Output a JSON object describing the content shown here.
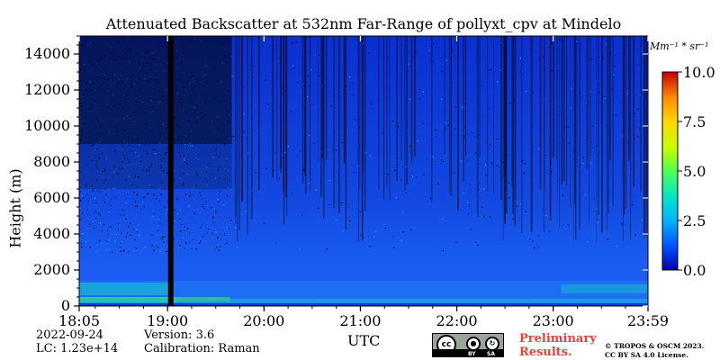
{
  "chart_data": {
    "type": "heatmap",
    "title": "Attenuated Backscatter at 532nm Far-Range of pollyxt_cpv at Mindelo",
    "ylabel": "Height (m)",
    "xlabel": "UTC",
    "x_ticks": [
      "18:05",
      "19:00",
      "20:00",
      "21:00",
      "22:00",
      "23:00",
      "23:59"
    ],
    "x_range": [
      "18:05",
      "23:59"
    ],
    "y_ticks": [
      0,
      2000,
      4000,
      6000,
      8000,
      10000,
      12000,
      14000
    ],
    "ylim": [
      0,
      15000
    ],
    "colorbar": {
      "unit": "Mm⁻¹ * sr⁻¹",
      "ticks": [
        "0.0",
        "2.5",
        "5.0",
        "7.5",
        "10.0"
      ],
      "range": [
        0,
        10
      ],
      "colormap": [
        "#0000b4",
        "#0050ff",
        "#00b4ff",
        "#00e6c8",
        "#50ff50",
        "#c8ff00",
        "#ffd700",
        "#ff8c00",
        "#ff2800",
        "#c80000"
      ]
    },
    "features": {
      "data_gap_time": "19:02",
      "aerosol_layer_top_m": 1400,
      "noise_dominated_above_m": 6000
    }
  },
  "meta": {
    "date": "2022-09-24",
    "lc": "LC: 1.23e+14",
    "version": "Version: 3.6",
    "calibration": "Calibration: Raman"
  },
  "footer": {
    "license_badge": {
      "cc": "cc",
      "by": "BY",
      "sa": "SA"
    },
    "preliminary_line1": "Preliminary",
    "preliminary_line2": "Results.",
    "copyright_line1": "© TROPOS & OSCM 2023.",
    "copyright_line2": "CC BY SA 4.0 License."
  }
}
